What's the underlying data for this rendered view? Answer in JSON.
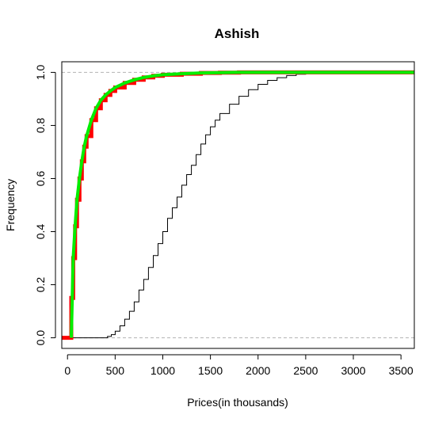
{
  "chart_data": {
    "type": "line",
    "title": "Ashish",
    "xlabel": "Prices(in thousands)",
    "ylabel": "Frequency",
    "xlim": [
      -60,
      3640
    ],
    "ylim": [
      -0.04,
      1.04
    ],
    "xticks": [
      0,
      500,
      1000,
      1500,
      2000,
      2500,
      3000,
      3500
    ],
    "yticks": [
      0.0,
      0.2,
      0.4,
      0.6,
      0.8,
      1.0
    ],
    "xtick_labels": [
      "0",
      "500",
      "1000",
      "1500",
      "2000",
      "2500",
      "3000",
      "3500"
    ],
    "ytick_labels": [
      "0.0",
      "0.2",
      "0.4",
      "0.6",
      "0.8",
      "1.0"
    ],
    "reference_lines": [
      0,
      1
    ],
    "grid": false,
    "series": [
      {
        "style": "step",
        "color": "#000000",
        "x": [
          -60,
          300,
          380,
          420,
          460,
          500,
          550,
          600,
          650,
          700,
          750,
          800,
          850,
          900,
          950,
          1000,
          1050,
          1100,
          1150,
          1200,
          1250,
          1300,
          1350,
          1400,
          1450,
          1500,
          1550,
          1600,
          1700,
          1800,
          1900,
          2000,
          2100,
          2200,
          2300,
          2400,
          2500,
          2600,
          2700,
          2800,
          3640
        ],
        "y": [
          0,
          0,
          0,
          0.005,
          0.012,
          0.025,
          0.045,
          0.07,
          0.1,
          0.135,
          0.18,
          0.22,
          0.265,
          0.31,
          0.355,
          0.4,
          0.45,
          0.49,
          0.53,
          0.575,
          0.615,
          0.65,
          0.69,
          0.73,
          0.765,
          0.795,
          0.82,
          0.845,
          0.88,
          0.91,
          0.935,
          0.955,
          0.97,
          0.98,
          0.988,
          0.993,
          0.996,
          0.998,
          0.999,
          1.0,
          1.0
        ]
      },
      {
        "style": "step",
        "color": "#ff0000",
        "x": [
          -60,
          30,
          40,
          60,
          80,
          100,
          125,
          150,
          175,
          200,
          250,
          300,
          350,
          400,
          450,
          500,
          600,
          700,
          800,
          900,
          1000,
          1200,
          1400,
          1600,
          1800,
          2000,
          3640
        ],
        "y": [
          0,
          0,
          0.15,
          0.3,
          0.42,
          0.52,
          0.6,
          0.665,
          0.72,
          0.76,
          0.82,
          0.865,
          0.895,
          0.915,
          0.93,
          0.943,
          0.96,
          0.972,
          0.981,
          0.987,
          0.991,
          0.995,
          0.998,
          0.999,
          1.0,
          1.0,
          1.0
        ]
      },
      {
        "style": "line",
        "color": "#00ee00",
        "x": [
          40,
          60,
          80,
          100,
          125,
          150,
          175,
          200,
          250,
          300,
          350,
          400,
          450,
          500,
          600,
          700,
          800,
          900,
          1000,
          1200,
          1400,
          1600,
          1800,
          2000,
          2400,
          2800,
          3200,
          3640
        ],
        "y": [
          0,
          0.3,
          0.42,
          0.52,
          0.6,
          0.665,
          0.72,
          0.76,
          0.82,
          0.865,
          0.895,
          0.915,
          0.93,
          0.943,
          0.96,
          0.972,
          0.981,
          0.987,
          0.991,
          0.995,
          0.998,
          0.999,
          1.0,
          1.0,
          1.0,
          1.0,
          1.0,
          1.0
        ]
      }
    ]
  }
}
